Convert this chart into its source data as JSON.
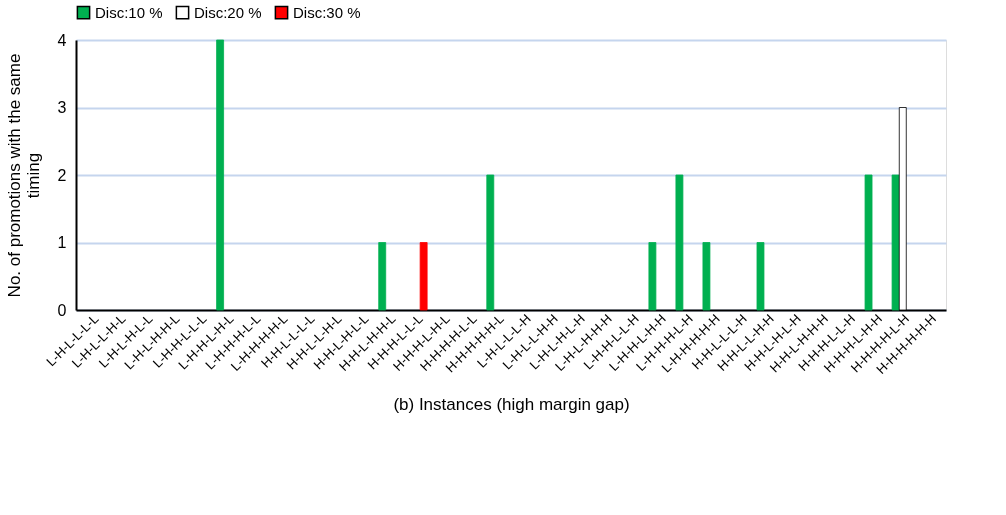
{
  "chart_data": {
    "type": "bar",
    "xlabel": "(b) Instances (high margin gap)",
    "ylabel": "No.  of promotions with the same timing",
    "categories": [
      "L-H-L-L-L-L",
      "L-H-L-L-H-L",
      "L-H-L-H-L-L",
      "L-H-L-H-H-L",
      "L-H-H-L-L-L",
      "L-H-H-L-H-L",
      "L-H-H-H-L-L",
      "L-H-H-H-H-L",
      "H-H-L-L-L-L",
      "H-H-L-L-H-L",
      "H-H-L-H-L-L",
      "H-H-L-H-H-L",
      "H-H-H-L-L-L",
      "H-H-H-L-H-L",
      "H-H-H-H-L-L",
      "H-H-H-H-H-L",
      "L-H-L-L-L-H",
      "L-H-L-L-H-H",
      "L-H-L-H-L-H",
      "L-H-L-H-H-H",
      "L-H-H-L-L-H",
      "L-H-H-L-H-H",
      "L-H-H-H-L-H",
      "L-H-H-H-H-H",
      "H-H-L-L-L-H",
      "H-H-L-L-H-H",
      "H-H-L-H-L-H",
      "H-H-L-H-H-H",
      "H-H-H-L-L-H",
      "H-H-H-L-H-H",
      "H-H-H-H-L-H",
      "H-H-H-H-H-H"
    ],
    "series": [
      {
        "name": "Disc:10 %",
        "color": "#00b050",
        "values": [
          0,
          0,
          0,
          0,
          0,
          4,
          0,
          0,
          0,
          0,
          0,
          1,
          0,
          0,
          0,
          2,
          0,
          0,
          0,
          0,
          0,
          1,
          2,
          1,
          0,
          1,
          0,
          0,
          0,
          2,
          2,
          0
        ]
      },
      {
        "name": "Disc:20 %",
        "color": "#ffffff",
        "values": [
          0,
          0,
          0,
          0,
          0,
          0,
          0,
          0,
          0,
          0,
          0,
          0,
          0,
          0,
          0,
          0,
          0,
          0,
          0,
          0,
          0,
          0,
          0,
          0,
          0,
          0,
          0,
          0,
          0,
          0,
          3,
          0
        ]
      },
      {
        "name": "Disc:30 %",
        "color": "#ff0000",
        "values": [
          0,
          0,
          0,
          0,
          0,
          0,
          0,
          0,
          0,
          0,
          0,
          0,
          1,
          0,
          0,
          0,
          0,
          0,
          0,
          0,
          0,
          0,
          0,
          0,
          0,
          0,
          0,
          0,
          0,
          0,
          0,
          0
        ]
      }
    ],
    "ylim": [
      0,
      4
    ],
    "yticks": [
      0,
      1,
      2,
      3,
      4
    ],
    "grid": "y",
    "legend": "top"
  }
}
